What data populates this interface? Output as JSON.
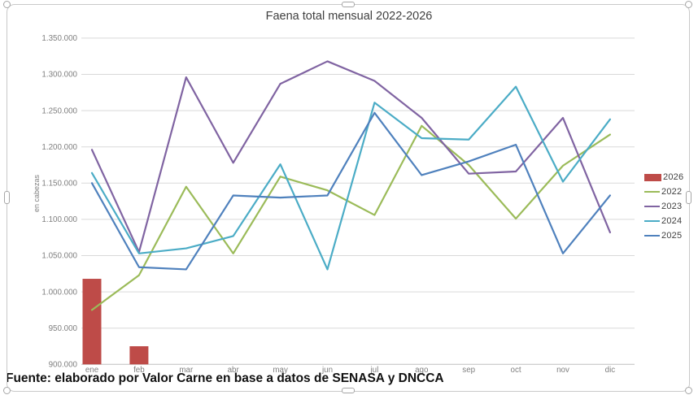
{
  "chart_data": {
    "type": "combo",
    "title": "Faena total mensual 2022-2026",
    "xlabel": "",
    "ylabel": "en cabezas",
    "ylim": [
      900000,
      1350000
    ],
    "ytick_step": 50000,
    "grid": true,
    "legend_position": "right",
    "categories": [
      "ene",
      "feb",
      "mar",
      "abr",
      "may",
      "jun",
      "jul",
      "ago",
      "sep",
      "oct",
      "nov",
      "dic"
    ],
    "series": [
      {
        "name": "2026",
        "type": "bar",
        "color": "#be4b48",
        "values": [
          1018000,
          925000,
          null,
          null,
          null,
          null,
          null,
          null,
          null,
          null,
          null,
          null
        ]
      },
      {
        "name": "2022",
        "type": "line",
        "color": "#9bbb59",
        "values": [
          975000,
          1023000,
          1145000,
          1053000,
          1159000,
          1140000,
          1106000,
          1229000,
          1175000,
          1101000,
          1174000,
          1217000
        ]
      },
      {
        "name": "2023",
        "type": "line",
        "color": "#8064a2",
        "values": [
          1196000,
          1055000,
          1296000,
          1178000,
          1287000,
          1318000,
          1291000,
          1240000,
          1163000,
          1166000,
          1240000,
          1082000
        ]
      },
      {
        "name": "2024",
        "type": "line",
        "color": "#4bacc6",
        "values": [
          1164000,
          1053000,
          1060000,
          1077000,
          1176000,
          1031000,
          1261000,
          1212000,
          1210000,
          1283000,
          1152000,
          1238000
        ]
      },
      {
        "name": "2025",
        "type": "line",
        "color": "#4f81bd",
        "values": [
          1150000,
          1034000,
          1031000,
          1133000,
          1130000,
          1133000,
          1247000,
          1161000,
          1180000,
          1203000,
          1053000,
          1133000
        ]
      }
    ]
  },
  "footer": {
    "text": "Fuente: elaborado por Valor Carne en base a datos de SENASA y DNCCA"
  },
  "style": {
    "gridline_color": "#d9d9d9",
    "axis_line_color": "#bfbfbf",
    "tick_label_color": "#7f7f7f"
  }
}
